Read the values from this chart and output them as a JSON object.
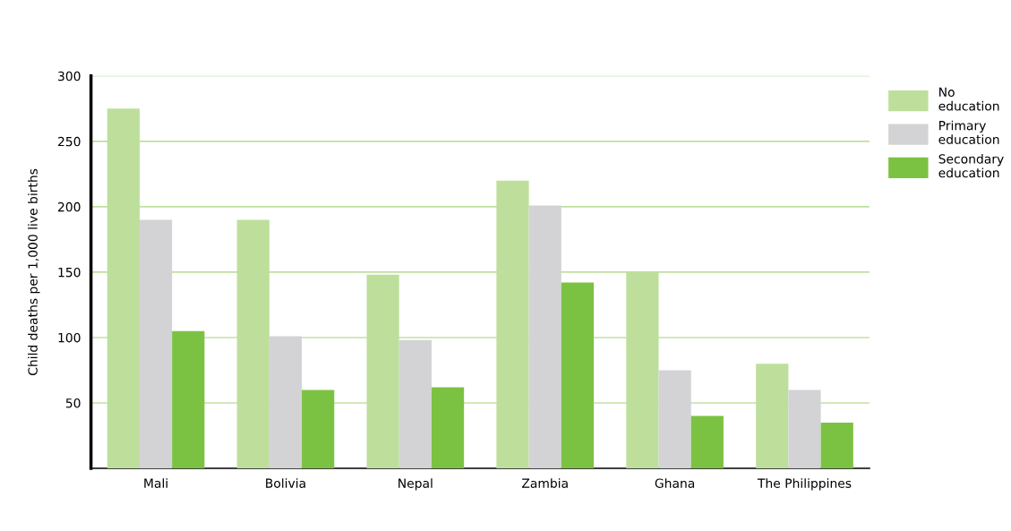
{
  "chart_data": {
    "type": "bar",
    "ylabel": "Child deaths per 1,000 live births",
    "categories": [
      "Mali",
      "Bolivia",
      "Nepal",
      "Zambia",
      "Ghana",
      "The Philippines"
    ],
    "series": [
      {
        "name": "No education",
        "color": "#bddf9b",
        "values": [
          275,
          190,
          148,
          220,
          150,
          80
        ]
      },
      {
        "name": "Primary education",
        "color": "#d3d3d5",
        "values": [
          190,
          101,
          98,
          201,
          75,
          60
        ]
      },
      {
        "name": "Secondary education",
        "color": "#7cc242",
        "values": [
          105,
          60,
          62,
          142,
          40,
          35
        ]
      }
    ],
    "ylim": [
      0,
      300
    ],
    "yticks": [
      50,
      100,
      150,
      200,
      250,
      300
    ],
    "grid": "y",
    "legend": "right"
  }
}
